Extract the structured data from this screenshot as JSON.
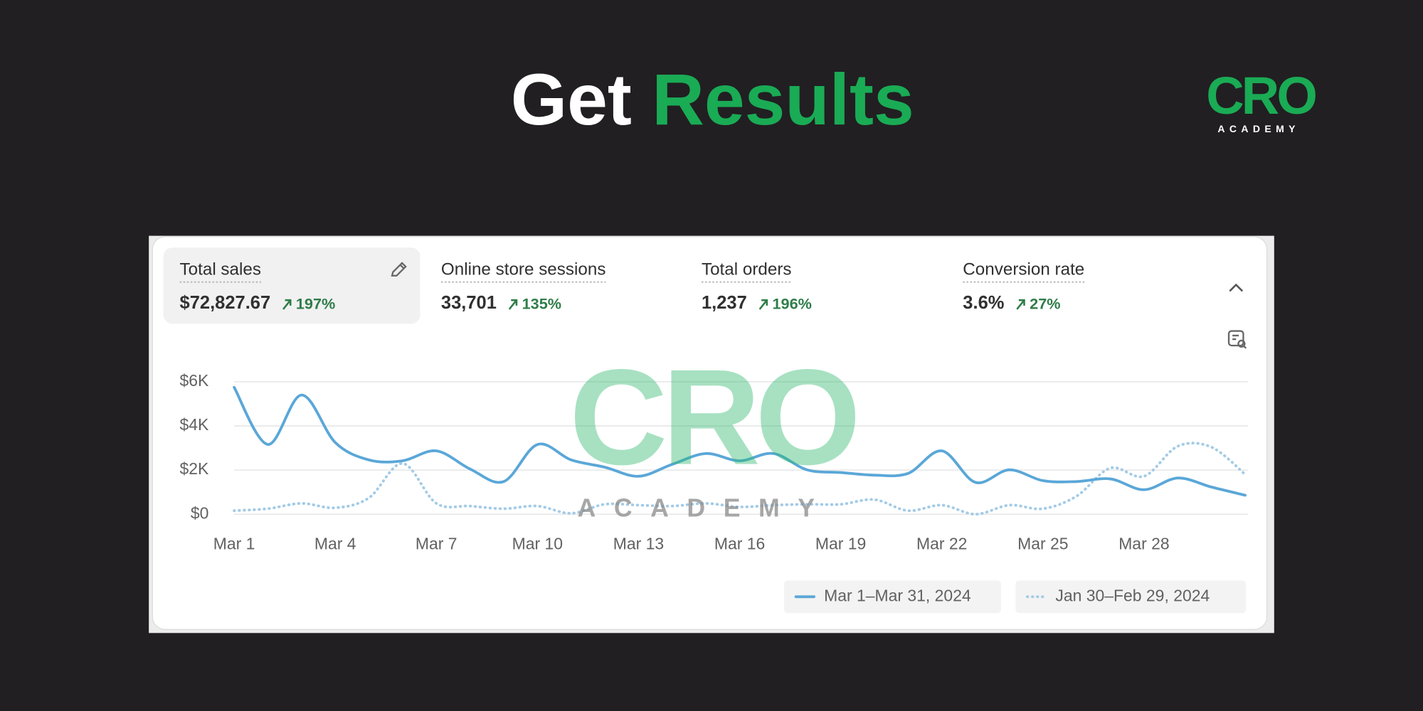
{
  "header": {
    "title_start": "Get",
    "title_highlight": "Results"
  },
  "logo": {
    "name": "CRO",
    "tagline": "ACADEMY"
  },
  "watermark": {
    "name": "CRO",
    "tagline": "ACADEMY"
  },
  "metrics": [
    {
      "label": "Total sales",
      "value": "$72,827.67",
      "change": "197%"
    },
    {
      "label": "Online store sessions",
      "value": "33,701",
      "change": "135%"
    },
    {
      "label": "Total orders",
      "value": "1,237",
      "change": "196%"
    },
    {
      "label": "Conversion rate",
      "value": "3.6%",
      "change": "27%"
    }
  ],
  "chart_data": {
    "type": "line",
    "categories": [
      "Mar 1",
      null,
      null,
      "Mar 4",
      null,
      null,
      "Mar 7",
      null,
      null,
      "Mar 10",
      null,
      null,
      "Mar 13",
      null,
      null,
      "Mar 16",
      null,
      null,
      "Mar 19",
      null,
      null,
      "Mar 22",
      null,
      null,
      "Mar 25",
      null,
      null,
      "Mar 28",
      null,
      null,
      null
    ],
    "series": [
      {
        "name": "Mar 1–Mar 31, 2024",
        "color": "#5aa7d8",
        "style": "solid",
        "values": [
          5750,
          3160,
          5400,
          3250,
          2460,
          2420,
          2870,
          2050,
          1480,
          3160,
          2460,
          2130,
          1720,
          2260,
          2750,
          2420,
          2750,
          2010,
          1890,
          1770,
          1850,
          2870,
          1440,
          2010,
          1520,
          1480,
          1600,
          1110,
          1640,
          1230,
          860
        ]
      },
      {
        "name": "Jan 30–Feb 29, 2024",
        "color": "#a3cbe6",
        "style": "dotted",
        "values": [
          160,
          250,
          490,
          290,
          740,
          2300,
          490,
          370,
          250,
          370,
          40,
          450,
          410,
          370,
          490,
          330,
          410,
          450,
          450,
          660,
          160,
          410,
          0,
          410,
          250,
          820,
          2090,
          1720,
          3080,
          3040,
          1810
        ]
      }
    ],
    "ylim": [
      0,
      6000
    ],
    "yticks": [
      {
        "value": 0,
        "label": "$0"
      },
      {
        "value": 2000,
        "label": "$2K"
      },
      {
        "value": 4000,
        "label": "$4K"
      },
      {
        "value": 6000,
        "label": "$6K"
      }
    ],
    "grid": true
  }
}
